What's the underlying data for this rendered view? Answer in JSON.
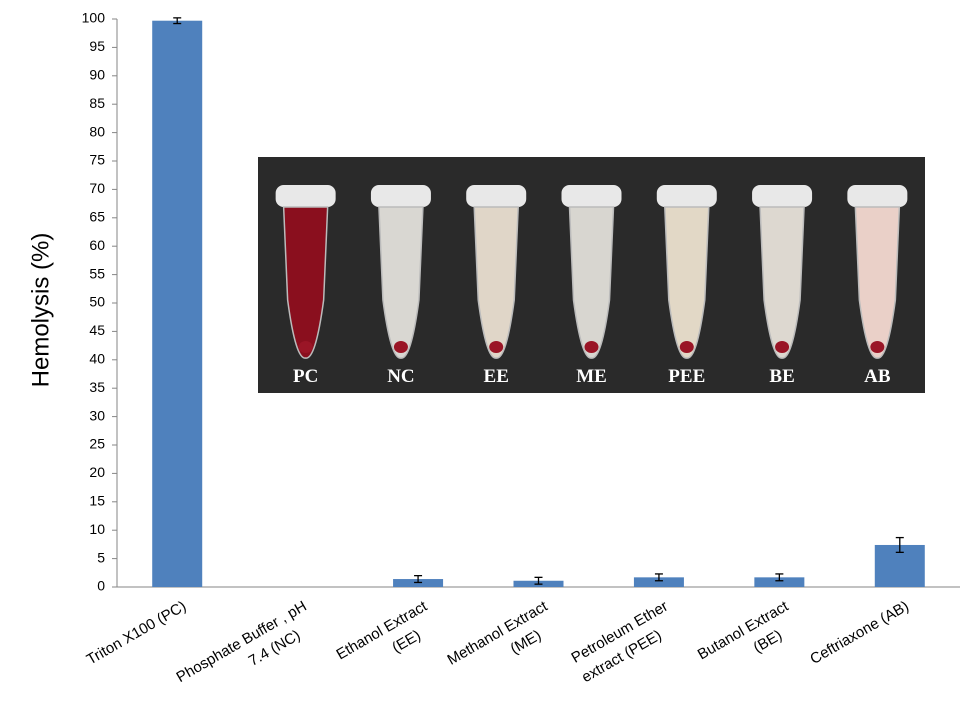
{
  "chart_data": {
    "type": "bar",
    "y_label": "Hemolysis (%)",
    "categories": [
      [
        "Triton X100 (PC)"
      ],
      [
        "Phosphate Buffer , pH",
        "7.4 (NC)"
      ],
      [
        "Ethanol Extract",
        "(EE)"
      ],
      [
        "Methanol Extract",
        "(ME)"
      ],
      [
        "Petroleum Ether",
        "extract (PEE)"
      ],
      [
        "Butanol Extract",
        "(BE)"
      ],
      [
        "Ceftriaxone (AB)"
      ]
    ],
    "values": [
      99.7,
      0,
      1.4,
      1.1,
      1.7,
      1.7,
      7.4
    ],
    "errors": [
      0.5,
      0,
      0.6,
      0.6,
      0.6,
      0.6,
      1.3
    ],
    "color": "#4f81bd",
    "ylim": [
      0,
      100
    ],
    "yticks": [
      0,
      5,
      10,
      15,
      20,
      25,
      30,
      35,
      40,
      45,
      50,
      55,
      60,
      65,
      70,
      75,
      80,
      85,
      90,
      95,
      100
    ],
    "inset": {
      "tubes": [
        {
          "label": "PC",
          "color": "#8a0f1e"
        },
        {
          "label": "NC",
          "color": "#d9d7d2"
        },
        {
          "label": "EE",
          "color": "#e0d6c8"
        },
        {
          "label": "ME",
          "color": "#d8d6d0"
        },
        {
          "label": "PEE",
          "color": "#e2d8c6"
        },
        {
          "label": "BE",
          "color": "#ddd8d0"
        },
        {
          "label": "AB",
          "color": "#ead0c8"
        }
      ]
    }
  }
}
